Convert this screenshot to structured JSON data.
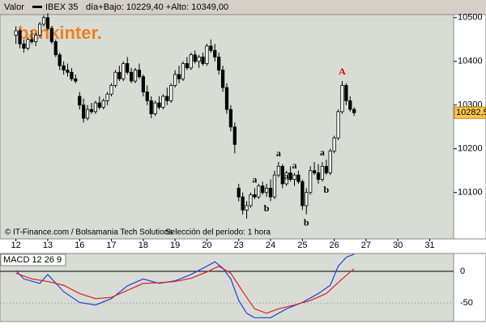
{
  "header": {
    "label": "Valor",
    "symbol": "IBEX 35",
    "range": "día+Bajo: 10229,40 +Alto: 10349,00"
  },
  "logo": "bankinter.",
  "footer": {
    "source": "© IT-Finance.com / Bolsamania Tech Solutions",
    "period": "Selección del período: 1 hora"
  },
  "chart_data": [
    {
      "type": "candlestick",
      "up_color": "#ffffff",
      "down_color": "#000000",
      "xlim": [
        -4,
        110
      ],
      "ylim": [
        10018,
        10507
      ],
      "xticks": [
        {
          "value": 0,
          "label": "12"
        },
        {
          "value": 8,
          "label": "13"
        },
        {
          "value": 16,
          "label": "16"
        },
        {
          "value": 24,
          "label": "17"
        },
        {
          "value": 32,
          "label": "18"
        },
        {
          "value": 40,
          "label": "19"
        },
        {
          "value": 48,
          "label": "20"
        },
        {
          "value": 56,
          "label": "23"
        },
        {
          "value": 64,
          "label": "24"
        },
        {
          "value": 72,
          "label": "25"
        },
        {
          "value": 80,
          "label": "26"
        },
        {
          "value": 88,
          "label": "27"
        },
        {
          "value": 96,
          "label": "30"
        },
        {
          "value": 104,
          "label": "31"
        }
      ],
      "yticks": [
        10100,
        10200,
        10300,
        10400,
        10500
      ],
      "open": [
        10460,
        10470,
        10440,
        10430,
        10450,
        10445,
        10460,
        10485,
        10500,
        10475,
        10445,
        10415,
        10390,
        10380,
        10375,
        10360,
        10320,
        10300,
        10270,
        10290,
        10285,
        10305,
        10295,
        10310,
        10325,
        10345,
        10375,
        10360,
        10395,
        10375,
        10355,
        10380,
        10365,
        10330,
        10310,
        10280,
        10305,
        10295,
        10320,
        10310,
        10345,
        10370,
        10360,
        10395,
        10385,
        10415,
        10400,
        10410,
        10395,
        10435,
        10425,
        10410,
        10380,
        10340,
        10290,
        10250,
        10110,
        10090,
        10060,
        10070,
        10095,
        10090,
        10115,
        10100,
        10110,
        10090,
        10140,
        10160,
        10120,
        10145,
        10130,
        10140,
        10125,
        10070,
        10100,
        10150,
        10145,
        10130,
        10160,
        10145,
        10195,
        10225,
        10285,
        10345,
        10310,
        10290
      ],
      "high": [
        10480,
        10475,
        10450,
        10455,
        10470,
        10465,
        10490,
        10505,
        10510,
        10480,
        10450,
        10420,
        10400,
        10395,
        10385,
        10370,
        10330,
        10315,
        10300,
        10305,
        10310,
        10320,
        10315,
        10330,
        10350,
        10380,
        10390,
        10400,
        10410,
        10385,
        10385,
        10395,
        10370,
        10345,
        10320,
        10310,
        10320,
        10325,
        10340,
        10350,
        10380,
        10390,
        10400,
        10410,
        10420,
        10425,
        10415,
        10420,
        10440,
        10450,
        10440,
        10420,
        10390,
        10350,
        10300,
        10260,
        10120,
        10100,
        10080,
        10100,
        10110,
        10120,
        10125,
        10120,
        10130,
        10150,
        10170,
        10165,
        10150,
        10160,
        10145,
        10150,
        10130,
        10110,
        10160,
        10170,
        10165,
        10170,
        10175,
        10200,
        10230,
        10290,
        10355,
        10350,
        10320,
        10295
      ],
      "low": [
        10440,
        10430,
        10420,
        10425,
        10440,
        10435,
        10455,
        10480,
        10470,
        10440,
        10410,
        10380,
        10370,
        10365,
        10355,
        10350,
        10290,
        10260,
        10265,
        10280,
        10280,
        10290,
        10290,
        10300,
        10320,
        10340,
        10355,
        10355,
        10370,
        10350,
        10350,
        10360,
        10320,
        10300,
        10270,
        10275,
        10290,
        10290,
        10300,
        10305,
        10340,
        10350,
        10355,
        10380,
        10380,
        10395,
        10385,
        10390,
        10390,
        10420,
        10400,
        10370,
        10330,
        10280,
        10240,
        10190,
        10080,
        10050,
        10040,
        10065,
        10085,
        10085,
        10095,
        10090,
        10080,
        10085,
        10135,
        10110,
        10115,
        10125,
        10115,
        10120,
        10060,
        10050,
        10095,
        10140,
        10120,
        10125,
        10140,
        10140,
        10190,
        10220,
        10280,
        10300,
        10285,
        10275
      ],
      "close": [
        10470,
        10440,
        10430,
        10450,
        10445,
        10460,
        10485,
        10500,
        10475,
        10445,
        10415,
        10390,
        10380,
        10375,
        10360,
        10355,
        10300,
        10270,
        10290,
        10285,
        10305,
        10295,
        10310,
        10325,
        10345,
        10375,
        10360,
        10395,
        10375,
        10355,
        10380,
        10365,
        10330,
        10310,
        10280,
        10305,
        10295,
        10320,
        10310,
        10345,
        10370,
        10360,
        10395,
        10385,
        10415,
        10400,
        10410,
        10395,
        10435,
        10425,
        10410,
        10380,
        10340,
        10290,
        10250,
        10210,
        10090,
        10060,
        10070,
        10095,
        10090,
        10115,
        10100,
        10110,
        10090,
        10140,
        10160,
        10120,
        10145,
        10130,
        10140,
        10125,
        10070,
        10100,
        10150,
        10145,
        10130,
        10160,
        10145,
        10195,
        10225,
        10285,
        10345,
        10310,
        10290,
        10282.5
      ],
      "last_value": {
        "value": 10282.5,
        "label": "10282,5"
      },
      "annotations": [
        {
          "text": "A",
          "x": 82,
          "y": 10375,
          "color": "#e00000"
        },
        {
          "text": "a",
          "x": 60,
          "y": 10128,
          "color": "#000000"
        },
        {
          "text": "b",
          "x": 63,
          "y": 10062,
          "color": "#000000"
        },
        {
          "text": "a",
          "x": 66,
          "y": 10188,
          "color": "#000000"
        },
        {
          "text": "a",
          "x": 68,
          "y": 10135,
          "color": "#000000"
        },
        {
          "text": "a",
          "x": 70,
          "y": 10160,
          "color": "#000000"
        },
        {
          "text": "b",
          "x": 73,
          "y": 10030,
          "color": "#000000"
        },
        {
          "text": "a",
          "x": 77,
          "y": 10190,
          "color": "#000000"
        },
        {
          "text": "b",
          "x": 78,
          "y": 10105,
          "color": "#000000"
        }
      ]
    },
    {
      "type": "line",
      "title": "MACD 12 26 9",
      "xlim": [
        -4,
        110
      ],
      "ylim": [
        -79,
        28
      ],
      "yticks": [
        0,
        -50
      ],
      "series": [
        {
          "color": "#2040e0",
          "x": [
            0,
            2,
            6,
            8,
            12,
            16,
            20,
            24,
            28,
            32,
            36,
            40,
            44,
            48,
            50,
            52,
            54,
            56,
            58,
            60,
            64,
            68,
            72,
            76,
            79,
            81,
            83,
            85
          ],
          "values": [
            1,
            -12,
            -19,
            -5,
            -32,
            -49,
            -53,
            -43,
            -23,
            -12,
            -19,
            -15,
            -5,
            8,
            15,
            5,
            -12,
            -46,
            -66,
            -73,
            -73,
            -59,
            -49,
            -35,
            -22,
            8,
            22,
            27
          ]
        },
        {
          "color": "#e02020",
          "x": [
            0,
            4,
            8,
            12,
            16,
            20,
            24,
            28,
            32,
            36,
            40,
            44,
            48,
            51,
            54,
            57,
            60,
            63,
            66,
            70,
            74,
            78,
            82,
            85
          ],
          "values": [
            -3,
            -12,
            -16,
            -22,
            -35,
            -43,
            -41,
            -30,
            -19,
            -18,
            -16,
            -11,
            -1,
            8,
            -3,
            -32,
            -59,
            -66,
            -59,
            -53,
            -46,
            -35,
            -12,
            4
          ]
        }
      ]
    }
  ]
}
